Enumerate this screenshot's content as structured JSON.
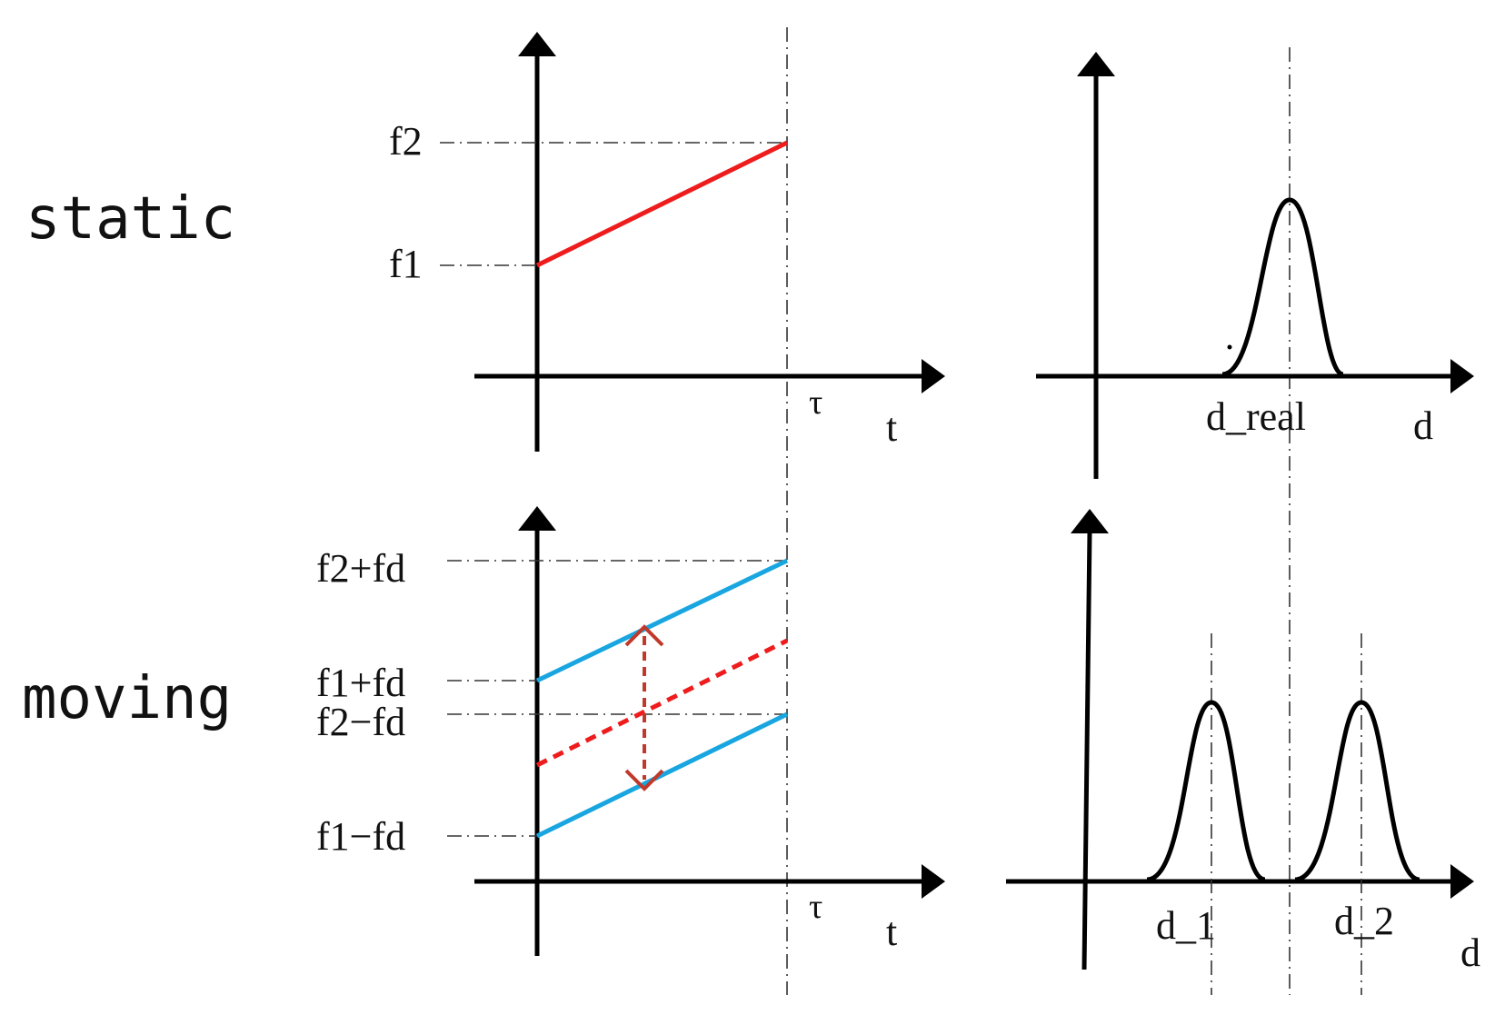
{
  "row_labels": {
    "static": "static",
    "moving": "moving"
  },
  "static_chirp": {
    "y_labels": {
      "f2": "f2",
      "f1": "f1"
    },
    "x_labels": {
      "tau": "τ",
      "t": "t"
    },
    "line_color": "#ee1c1c"
  },
  "static_spectrum": {
    "x_labels": {
      "d_real": "d_real",
      "d": "d"
    }
  },
  "moving_chirp": {
    "y_labels": {
      "f2_plus_fd": "f2+fd",
      "f1_plus_fd": "f1+fd",
      "f2_minus_fd": "f2−fd",
      "f1_minus_fd": "f1−fd"
    },
    "x_labels": {
      "tau": "τ",
      "t": "t"
    },
    "line_color": "#19a6e0",
    "reference_color": "#ee1c1c",
    "arrow_color": "#c0392b"
  },
  "moving_spectrum": {
    "x_labels": {
      "d_1": "d_1",
      "d_2": "d_2",
      "d": "d"
    }
  }
}
